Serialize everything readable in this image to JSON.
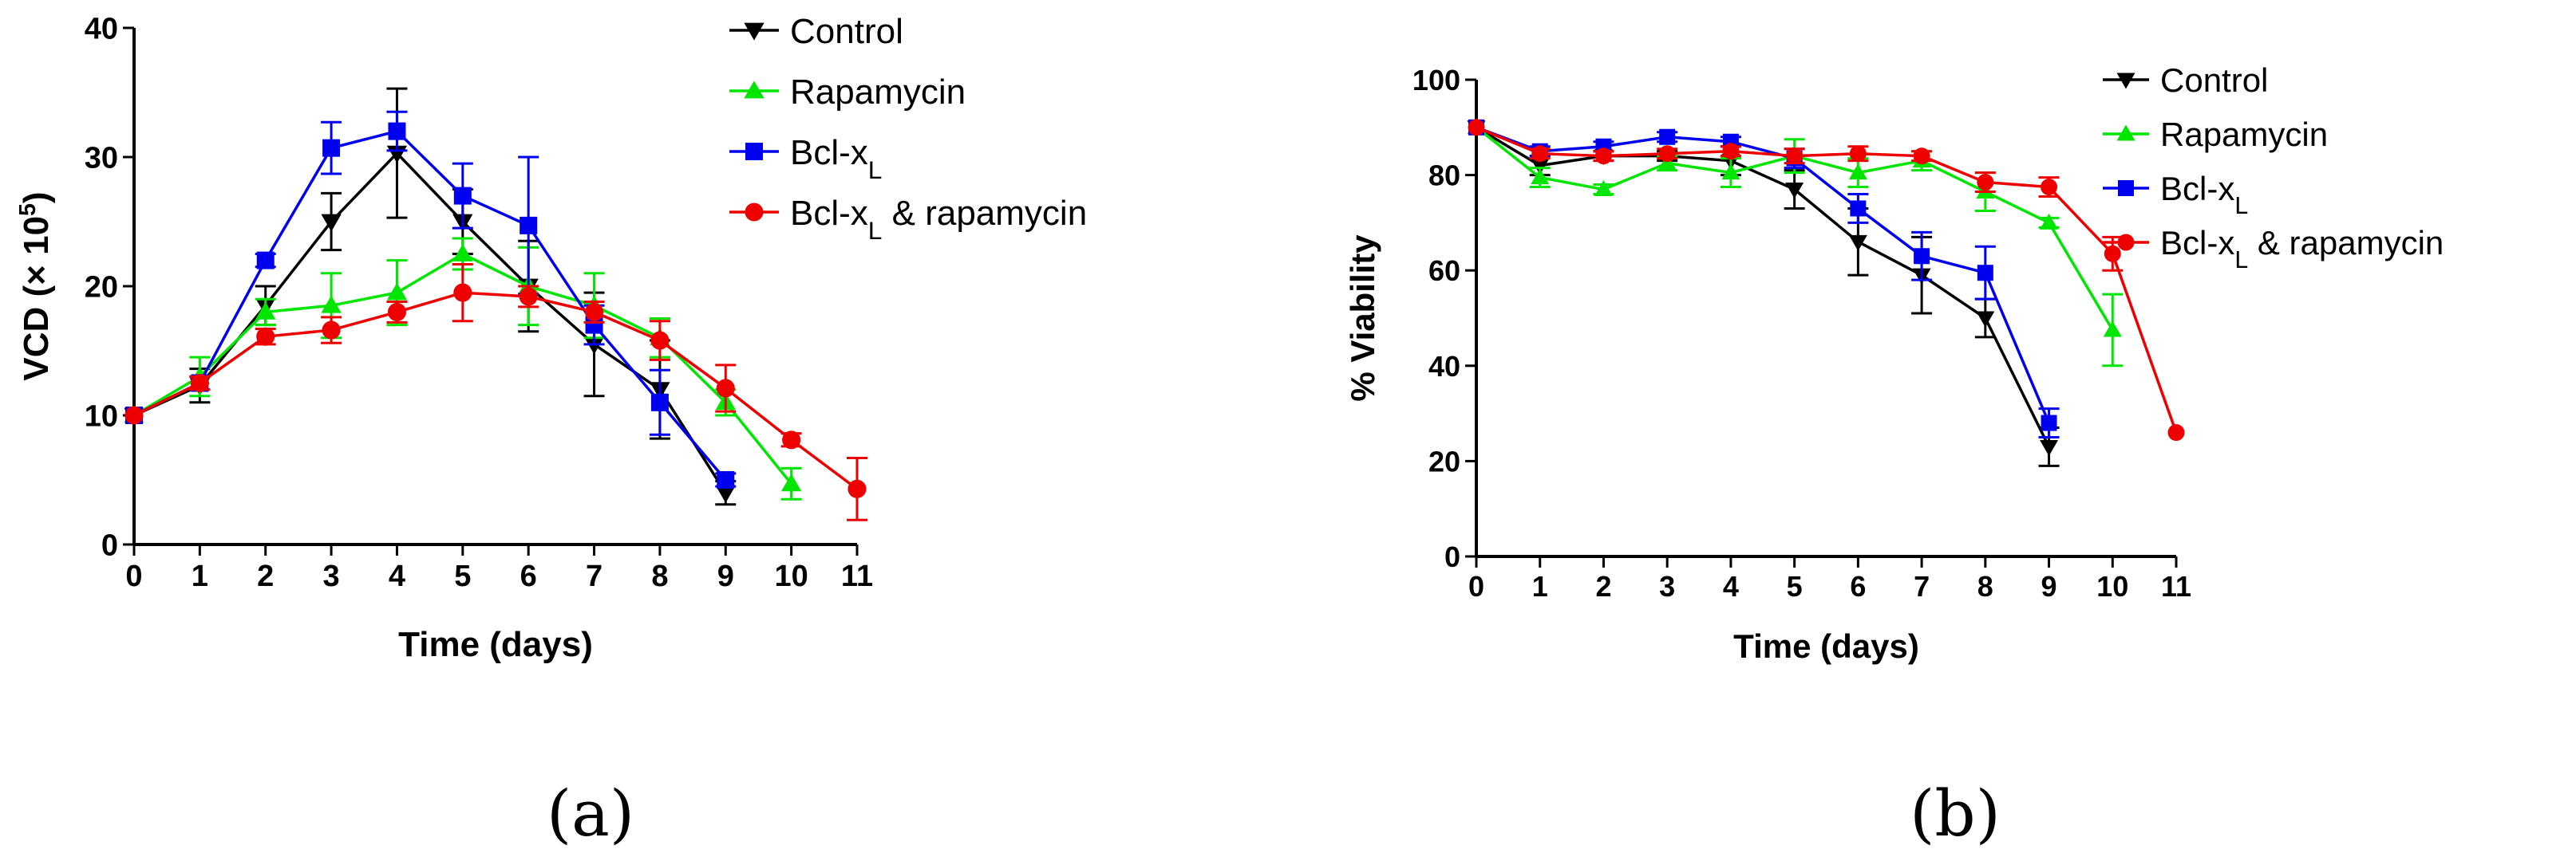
{
  "chart_data": [
    {
      "type": "line",
      "panel_label": "(a)",
      "xlabel": "Time (days)",
      "ylabel_main": "VCD (× 10",
      "ylabel_sup": "5",
      "ylabel_end": ")",
      "xlim": [
        0,
        11
      ],
      "ylim": [
        0,
        40
      ],
      "x_ticks": [
        0,
        1,
        2,
        3,
        4,
        5,
        6,
        7,
        8,
        9,
        10,
        11
      ],
      "y_ticks": [
        0,
        10,
        20,
        30,
        40
      ],
      "grid": false,
      "legend_position": "top-right",
      "series": [
        {
          "name": "Control",
          "color": "#000000",
          "marker": "triangle-down",
          "x": [
            0,
            1,
            2,
            3,
            4,
            5,
            6,
            7,
            8,
            9
          ],
          "y": [
            10,
            12.3,
            18.5,
            25,
            30.3,
            25,
            20,
            15.5,
            12,
            4
          ],
          "err": [
            0,
            1.3,
            1.5,
            2.2,
            5,
            2.5,
            3.5,
            4,
            3.8,
            0.9
          ]
        },
        {
          "name": "Rapamycin",
          "color": "#00e600",
          "marker": "triangle-up",
          "x": [
            0,
            1,
            2,
            3,
            4,
            5,
            6,
            7,
            8,
            9,
            10
          ],
          "y": [
            10,
            13,
            18,
            18.5,
            19.5,
            22.5,
            20,
            18.5,
            16,
            11,
            4.7
          ],
          "err": [
            0,
            1.5,
            1,
            2.5,
            2.5,
            1.2,
            3,
            2.5,
            1.5,
            1,
            1.2
          ]
        },
        {
          "name": "Bcl-x",
          "name_sub": "L",
          "color": "#0000ee",
          "marker": "square",
          "x": [
            0,
            1,
            2,
            3,
            4,
            5,
            6,
            7,
            8,
            9
          ],
          "y": [
            10,
            12.5,
            22,
            30.7,
            32,
            27,
            24.7,
            17,
            11,
            5
          ],
          "err": [
            0,
            0.5,
            0.5,
            2,
            1.5,
            2.5,
            5.3,
            1.5,
            2.5,
            0.5
          ]
        },
        {
          "name": "Bcl-x",
          "name_sub": "L",
          "name_suffix": "& rapamycin",
          "color": "#ee0000",
          "marker": "circle",
          "x": [
            0,
            1,
            2,
            3,
            4,
            5,
            6,
            7,
            8,
            9,
            10,
            11
          ],
          "y": [
            10,
            12.5,
            16.1,
            16.6,
            18,
            19.5,
            19.2,
            18,
            15.8,
            12.1,
            8.1,
            4.3
          ],
          "err": [
            0,
            0.5,
            0.6,
            1,
            0.8,
            2.2,
            0.8,
            0.8,
            1.5,
            1.8,
            0.5,
            2.4
          ]
        }
      ]
    },
    {
      "type": "line",
      "panel_label": "(b)",
      "xlabel": "Time (days)",
      "ylabel": "% Viability",
      "xlim": [
        0,
        11
      ],
      "ylim": [
        0,
        100
      ],
      "x_ticks": [
        0,
        1,
        2,
        3,
        4,
        5,
        6,
        7,
        8,
        9,
        10,
        11
      ],
      "y_ticks": [
        0,
        20,
        40,
        60,
        80,
        100
      ],
      "grid": false,
      "legend_position": "top-right",
      "series": [
        {
          "name": "Control",
          "color": "#000000",
          "marker": "triangle-down",
          "x": [
            0,
            1,
            2,
            3,
            4,
            5,
            6,
            7,
            8,
            9
          ],
          "y": [
            90,
            82,
            84,
            84,
            83,
            77,
            66,
            59,
            50,
            23
          ],
          "err": [
            0,
            2,
            1,
            1,
            3,
            4,
            7,
            8,
            4,
            4
          ]
        },
        {
          "name": "Rapamycin",
          "color": "#00e600",
          "marker": "triangle-up",
          "x": [
            0,
            1,
            2,
            3,
            4,
            5,
            6,
            7,
            8,
            9,
            10
          ],
          "y": [
            90,
            79.5,
            77,
            82.5,
            80.5,
            84,
            80.5,
            83,
            76.5,
            70,
            47.5
          ],
          "err": [
            0,
            2,
            1,
            1.5,
            3,
            3.5,
            3,
            2,
            4,
            1,
            7.5
          ]
        },
        {
          "name": "Bcl-x",
          "name_sub": "L",
          "color": "#0000ee",
          "marker": "square",
          "x": [
            0,
            1,
            2,
            3,
            4,
            5,
            6,
            7,
            8,
            9
          ],
          "y": [
            90,
            85,
            86,
            88,
            87,
            83.5,
            73,
            63,
            59.5,
            28
          ],
          "err": [
            0,
            1,
            1,
            1,
            1,
            2,
            3,
            5,
            5.5,
            3
          ]
        },
        {
          "name": "Bcl-x",
          "name_sub": "L",
          "name_suffix": "& rapamycin",
          "color": "#ee0000",
          "marker": "circle",
          "x": [
            0,
            1,
            2,
            3,
            4,
            5,
            6,
            7,
            8,
            9,
            10,
            11
          ],
          "y": [
            90,
            84.5,
            84,
            84.5,
            85,
            84,
            84.5,
            84,
            78.5,
            77.5,
            63.5,
            26
          ],
          "err": [
            0,
            1,
            1,
            1,
            1,
            1.5,
            1.5,
            1,
            2,
            2,
            3.5,
            0
          ]
        }
      ]
    }
  ]
}
